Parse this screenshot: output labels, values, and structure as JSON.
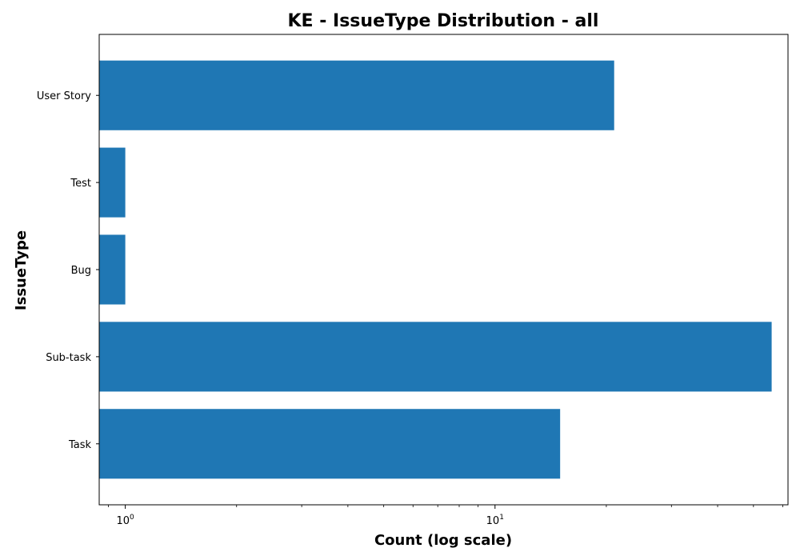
{
  "chart_data": {
    "type": "bar",
    "orientation": "horizontal",
    "title": "KE - IssueType Distribution - all",
    "xlabel": "Count (log scale)",
    "ylabel": "IssueType",
    "x_scale": "log",
    "xlim": [
      0.85,
      62
    ],
    "categories": [
      "Task",
      "Sub-task",
      "Bug",
      "Test",
      "User Story"
    ],
    "values": [
      15,
      56,
      1,
      1,
      21
    ],
    "bar_color": "#1f77b4",
    "x_ticks": [
      {
        "base": "10",
        "exp": "0",
        "value": 1
      },
      {
        "base": "10",
        "exp": "1",
        "value": 10
      }
    ],
    "grid": false,
    "legend": "none"
  }
}
